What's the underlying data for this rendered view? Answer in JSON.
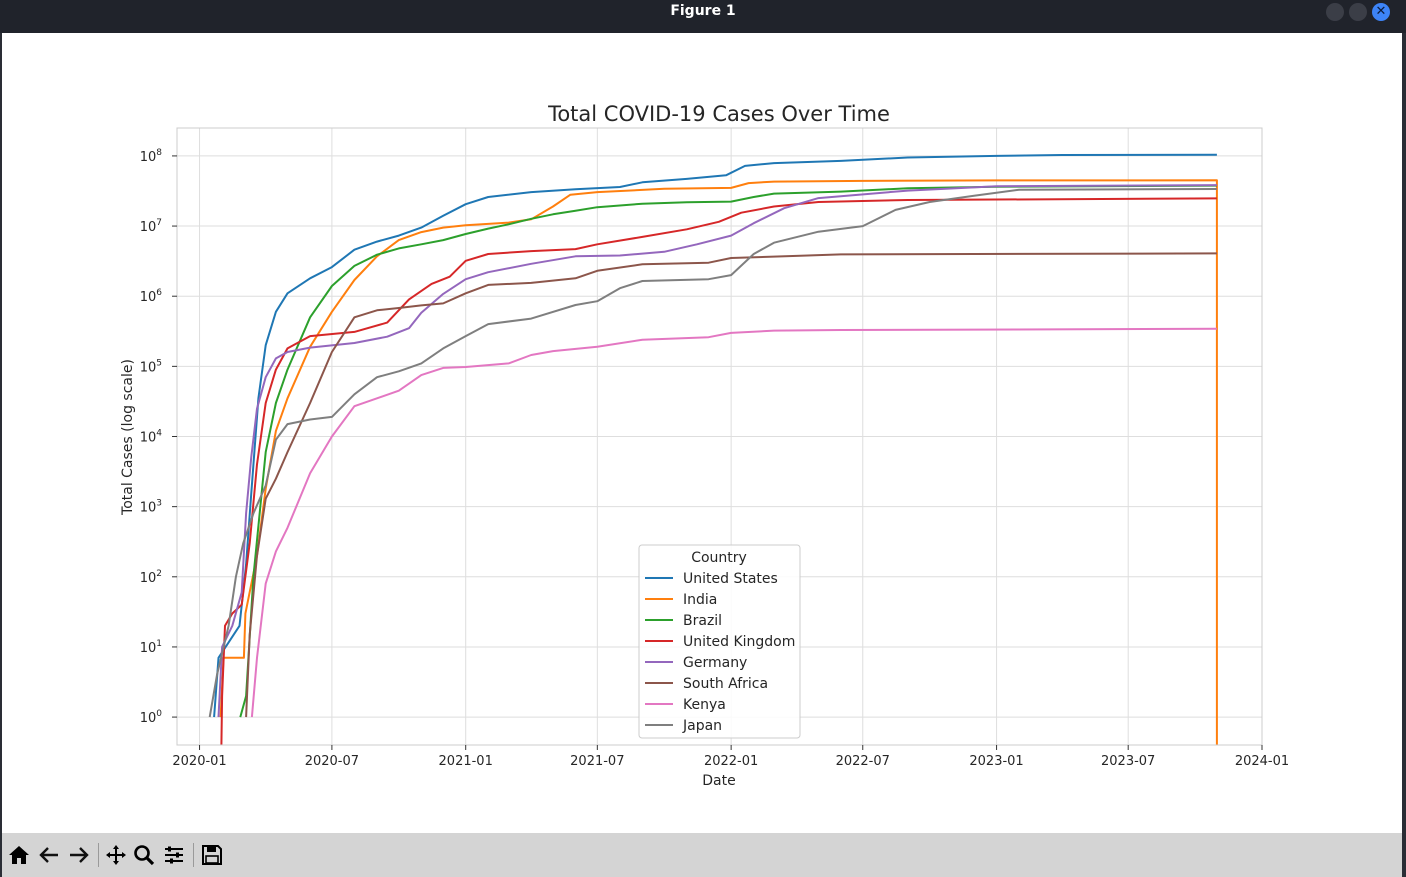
{
  "window": {
    "title": "Figure 1"
  },
  "toolbar": {
    "tools": [
      {
        "name": "home-icon"
      },
      {
        "name": "back-icon"
      },
      {
        "name": "forward-icon"
      },
      {
        "name": "pan-icon"
      },
      {
        "name": "zoom-icon"
      },
      {
        "name": "configure-subplots-icon"
      },
      {
        "name": "save-icon"
      }
    ]
  },
  "chart_data": {
    "type": "line",
    "title": "Total COVID-19 Cases Over Time",
    "xlabel": "Date",
    "ylabel": "Total Cases (log scale)",
    "yscale": "log",
    "ylim": [
      0.4,
      250000000
    ],
    "xlim": [
      "2019-12-01",
      "2024-01-01"
    ],
    "grid": true,
    "legend": {
      "title": "Country",
      "placement": "lower-center"
    },
    "x_ticks": [
      "2020-01",
      "2020-07",
      "2021-01",
      "2021-07",
      "2022-01",
      "2022-07",
      "2023-01",
      "2023-07",
      "2024-01"
    ],
    "y_ticks": [
      {
        "value": 1,
        "base": "10",
        "exp": "0"
      },
      {
        "value": 10,
        "base": "10",
        "exp": "1"
      },
      {
        "value": 100,
        "base": "10",
        "exp": "2"
      },
      {
        "value": 1000,
        "base": "10",
        "exp": "3"
      },
      {
        "value": 10000,
        "base": "10",
        "exp": "4"
      },
      {
        "value": 100000,
        "base": "10",
        "exp": "5"
      },
      {
        "value": 1000000,
        "base": "10",
        "exp": "6"
      },
      {
        "value": 10000000,
        "base": "10",
        "exp": "7"
      },
      {
        "value": 100000000,
        "base": "10",
        "exp": "8"
      }
    ],
    "series": [
      {
        "name": "United States",
        "color": "#1f77b4",
        "points": [
          [
            "2020-01-21",
            1
          ],
          [
            "2020-01-27",
            7
          ],
          [
            "2020-02-25",
            20
          ],
          [
            "2020-03-05",
            150
          ],
          [
            "2020-03-12",
            1500
          ],
          [
            "2020-03-22",
            35000
          ],
          [
            "2020-04-01",
            200000
          ],
          [
            "2020-04-15",
            600000
          ],
          [
            "2020-05-01",
            1100000
          ],
          [
            "2020-06-01",
            1800000
          ],
          [
            "2020-07-01",
            2600000
          ],
          [
            "2020-08-01",
            4600000
          ],
          [
            "2020-09-01",
            6000000
          ],
          [
            "2020-10-01",
            7300000
          ],
          [
            "2020-11-01",
            9500000
          ],
          [
            "2020-12-01",
            14000000
          ],
          [
            "2021-01-01",
            20500000
          ],
          [
            "2021-02-01",
            26000000
          ],
          [
            "2021-04-01",
            30500000
          ],
          [
            "2021-06-01",
            33500000
          ],
          [
            "2021-08-01",
            36000000
          ],
          [
            "2021-09-01",
            42000000
          ],
          [
            "2021-11-01",
            47000000
          ],
          [
            "2021-12-25",
            53000000
          ],
          [
            "2022-01-20",
            72000000
          ],
          [
            "2022-03-01",
            79000000
          ],
          [
            "2022-06-01",
            85000000
          ],
          [
            "2022-09-01",
            95000000
          ],
          [
            "2023-01-01",
            100000000
          ],
          [
            "2023-04-01",
            103000000
          ],
          [
            "2023-10-31",
            104000000
          ]
        ]
      },
      {
        "name": "India",
        "color": "#ff7f0e",
        "points": [
          [
            "2020-01-30",
            1
          ],
          [
            "2020-02-03",
            7
          ],
          [
            "2020-03-02",
            7
          ],
          [
            "2020-03-04",
            30
          ],
          [
            "2020-03-20",
            200
          ],
          [
            "2020-04-01",
            1800
          ],
          [
            "2020-04-15",
            12000
          ],
          [
            "2020-05-01",
            35000
          ],
          [
            "2020-06-01",
            190000
          ],
          [
            "2020-07-01",
            600000
          ],
          [
            "2020-08-01",
            1700000
          ],
          [
            "2020-09-01",
            3700000
          ],
          [
            "2020-10-01",
            6300000
          ],
          [
            "2020-11-01",
            8200000
          ],
          [
            "2020-12-01",
            9500000
          ],
          [
            "2021-01-01",
            10300000
          ],
          [
            "2021-03-01",
            11200000
          ],
          [
            "2021-04-01",
            12500000
          ],
          [
            "2021-05-01",
            19000000
          ],
          [
            "2021-05-25",
            28000000
          ],
          [
            "2021-07-01",
            30500000
          ],
          [
            "2021-10-01",
            34000000
          ],
          [
            "2022-01-01",
            35000000
          ],
          [
            "2022-01-25",
            41000000
          ],
          [
            "2022-03-01",
            43000000
          ],
          [
            "2022-07-01",
            44000000
          ],
          [
            "2023-01-01",
            44700000
          ],
          [
            "2023-10-31",
            44900000
          ],
          [
            "2023-10-31",
            0.4
          ]
        ]
      },
      {
        "name": "Brazil",
        "color": "#2ca02c",
        "points": [
          [
            "2020-02-26",
            1
          ],
          [
            "2020-03-05",
            2
          ],
          [
            "2020-03-15",
            100
          ],
          [
            "2020-04-01",
            6000
          ],
          [
            "2020-04-15",
            30000
          ],
          [
            "2020-05-01",
            90000
          ],
          [
            "2020-06-01",
            500000
          ],
          [
            "2020-07-01",
            1400000
          ],
          [
            "2020-08-01",
            2700000
          ],
          [
            "2020-09-01",
            3900000
          ],
          [
            "2020-10-01",
            4800000
          ],
          [
            "2020-11-01",
            5500000
          ],
          [
            "2020-12-01",
            6300000
          ],
          [
            "2021-01-01",
            7700000
          ],
          [
            "2021-02-01",
            9200000
          ],
          [
            "2021-03-01",
            10600000
          ],
          [
            "2021-04-01",
            12700000
          ],
          [
            "2021-05-01",
            14700000
          ],
          [
            "2021-06-01",
            16500000
          ],
          [
            "2021-07-01",
            18600000
          ],
          [
            "2021-09-01",
            20800000
          ],
          [
            "2021-11-01",
            21900000
          ],
          [
            "2022-01-01",
            22300000
          ],
          [
            "2022-02-01",
            26000000
          ],
          [
            "2022-03-01",
            29000000
          ],
          [
            "2022-06-01",
            31000000
          ],
          [
            "2022-09-01",
            34500000
          ],
          [
            "2023-01-01",
            36400000
          ],
          [
            "2023-10-31",
            37800000
          ]
        ]
      },
      {
        "name": "United Kingdom",
        "color": "#d62728",
        "points": [
          [
            "2020-01-31",
            0.4
          ],
          [
            "2020-02-01",
            2
          ],
          [
            "2020-02-05",
            20
          ],
          [
            "2020-02-15",
            30
          ],
          [
            "2020-02-28",
            40
          ],
          [
            "2020-03-10",
            300
          ],
          [
            "2020-03-20",
            4000
          ],
          [
            "2020-04-01",
            30000
          ],
          [
            "2020-04-15",
            90000
          ],
          [
            "2020-05-01",
            180000
          ],
          [
            "2020-06-01",
            270000
          ],
          [
            "2020-08-01",
            310000
          ],
          [
            "2020-09-15",
            420000
          ],
          [
            "2020-10-15",
            900000
          ],
          [
            "2020-11-15",
            1500000
          ],
          [
            "2020-12-10",
            1900000
          ],
          [
            "2021-01-01",
            3200000
          ],
          [
            "2021-02-01",
            4000000
          ],
          [
            "2021-04-01",
            4400000
          ],
          [
            "2021-06-01",
            4700000
          ],
          [
            "2021-07-01",
            5500000
          ],
          [
            "2021-09-01",
            7000000
          ],
          [
            "2021-11-01",
            9000000
          ],
          [
            "2021-12-15",
            11500000
          ],
          [
            "2022-01-15",
            15500000
          ],
          [
            "2022-03-01",
            19000000
          ],
          [
            "2022-05-01",
            22000000
          ],
          [
            "2022-09-01",
            23500000
          ],
          [
            "2023-10-31",
            24800000
          ]
        ]
      },
      {
        "name": "Germany",
        "color": "#9467bd",
        "points": [
          [
            "2020-01-27",
            1
          ],
          [
            "2020-02-01",
            10
          ],
          [
            "2020-02-15",
            20
          ],
          [
            "2020-02-28",
            60
          ],
          [
            "2020-03-05",
            800
          ],
          [
            "2020-03-12",
            5000
          ],
          [
            "2020-03-20",
            25000
          ],
          [
            "2020-04-01",
            70000
          ],
          [
            "2020-04-15",
            130000
          ],
          [
            "2020-05-01",
            160000
          ],
          [
            "2020-06-01",
            185000
          ],
          [
            "2020-08-01",
            215000
          ],
          [
            "2020-09-15",
            265000
          ],
          [
            "2020-10-15",
            350000
          ],
          [
            "2020-11-01",
            580000
          ],
          [
            "2020-12-01",
            1080000
          ],
          [
            "2021-01-01",
            1750000
          ],
          [
            "2021-02-01",
            2200000
          ],
          [
            "2021-04-01",
            2900000
          ],
          [
            "2021-06-01",
            3700000
          ],
          [
            "2021-08-01",
            3800000
          ],
          [
            "2021-10-01",
            4300000
          ],
          [
            "2021-11-15",
            5500000
          ],
          [
            "2022-01-01",
            7300000
          ],
          [
            "2022-02-01",
            11000000
          ],
          [
            "2022-03-15",
            18000000
          ],
          [
            "2022-05-01",
            25000000
          ],
          [
            "2022-09-01",
            32000000
          ],
          [
            "2023-01-01",
            37000000
          ],
          [
            "2023-10-31",
            38400000
          ]
        ]
      },
      {
        "name": "South Africa",
        "color": "#8c564b",
        "points": [
          [
            "2020-03-05",
            1
          ],
          [
            "2020-03-10",
            15
          ],
          [
            "2020-03-20",
            200
          ],
          [
            "2020-04-01",
            1300
          ],
          [
            "2020-04-15",
            2500
          ],
          [
            "2020-05-01",
            6000
          ],
          [
            "2020-06-01",
            30000
          ],
          [
            "2020-07-01",
            160000
          ],
          [
            "2020-08-01",
            500000
          ],
          [
            "2020-09-01",
            630000
          ],
          [
            "2020-10-01",
            680000
          ],
          [
            "2020-11-01",
            740000
          ],
          [
            "2020-12-01",
            790000
          ],
          [
            "2021-01-01",
            1100000
          ],
          [
            "2021-02-01",
            1450000
          ],
          [
            "2021-04-01",
            1550000
          ],
          [
            "2021-06-01",
            1800000
          ],
          [
            "2021-07-01",
            2300000
          ],
          [
            "2021-09-01",
            2850000
          ],
          [
            "2021-12-01",
            3000000
          ],
          [
            "2022-01-01",
            3500000
          ],
          [
            "2022-04-01",
            3750000
          ],
          [
            "2022-06-01",
            3950000
          ],
          [
            "2023-10-31",
            4070000
          ]
        ]
      },
      {
        "name": "Kenya",
        "color": "#e377c2",
        "points": [
          [
            "2020-03-13",
            1
          ],
          [
            "2020-03-20",
            7
          ],
          [
            "2020-04-01",
            80
          ],
          [
            "2020-04-15",
            230
          ],
          [
            "2020-05-01",
            500
          ],
          [
            "2020-06-01",
            3000
          ],
          [
            "2020-07-01",
            10000
          ],
          [
            "2020-08-01",
            27000
          ],
          [
            "2020-09-01",
            35000
          ],
          [
            "2020-10-01",
            45000
          ],
          [
            "2020-11-01",
            75000
          ],
          [
            "2020-12-01",
            95000
          ],
          [
            "2021-01-01",
            98000
          ],
          [
            "2021-03-01",
            110000
          ],
          [
            "2021-04-01",
            145000
          ],
          [
            "2021-05-01",
            165000
          ],
          [
            "2021-07-01",
            190000
          ],
          [
            "2021-09-01",
            240000
          ],
          [
            "2021-12-01",
            260000
          ],
          [
            "2022-01-01",
            300000
          ],
          [
            "2022-03-01",
            323000
          ],
          [
            "2022-06-01",
            330000
          ],
          [
            "2023-10-31",
            343000
          ]
        ]
      },
      {
        "name": "Japan",
        "color": "#7f7f7f",
        "points": [
          [
            "2020-01-15",
            1
          ],
          [
            "2020-01-25",
            4
          ],
          [
            "2020-02-10",
            20
          ],
          [
            "2020-02-20",
            100
          ],
          [
            "2020-03-01",
            300
          ],
          [
            "2020-03-15",
            800
          ],
          [
            "2020-04-01",
            2000
          ],
          [
            "2020-04-15",
            9000
          ],
          [
            "2020-05-01",
            15000
          ],
          [
            "2020-06-01",
            17500
          ],
          [
            "2020-07-01",
            19000
          ],
          [
            "2020-08-01",
            40000
          ],
          [
            "2020-09-01",
            70000
          ],
          [
            "2020-10-01",
            85000
          ],
          [
            "2020-11-01",
            110000
          ],
          [
            "2020-12-01",
            180000
          ],
          [
            "2021-01-01",
            270000
          ],
          [
            "2021-02-01",
            400000
          ],
          [
            "2021-04-01",
            480000
          ],
          [
            "2021-06-01",
            750000
          ],
          [
            "2021-07-01",
            850000
          ],
          [
            "2021-08-01",
            1300000
          ],
          [
            "2021-09-01",
            1650000
          ],
          [
            "2021-12-01",
            1750000
          ],
          [
            "2022-01-01",
            2000000
          ],
          [
            "2022-02-01",
            4000000
          ],
          [
            "2022-03-01",
            5800000
          ],
          [
            "2022-05-01",
            8300000
          ],
          [
            "2022-07-01",
            10000000
          ],
          [
            "2022-08-15",
            17000000
          ],
          [
            "2022-10-01",
            22000000
          ],
          [
            "2022-12-01",
            27000000
          ],
          [
            "2023-02-01",
            33000000
          ],
          [
            "2023-10-31",
            33800000
          ]
        ]
      }
    ]
  }
}
